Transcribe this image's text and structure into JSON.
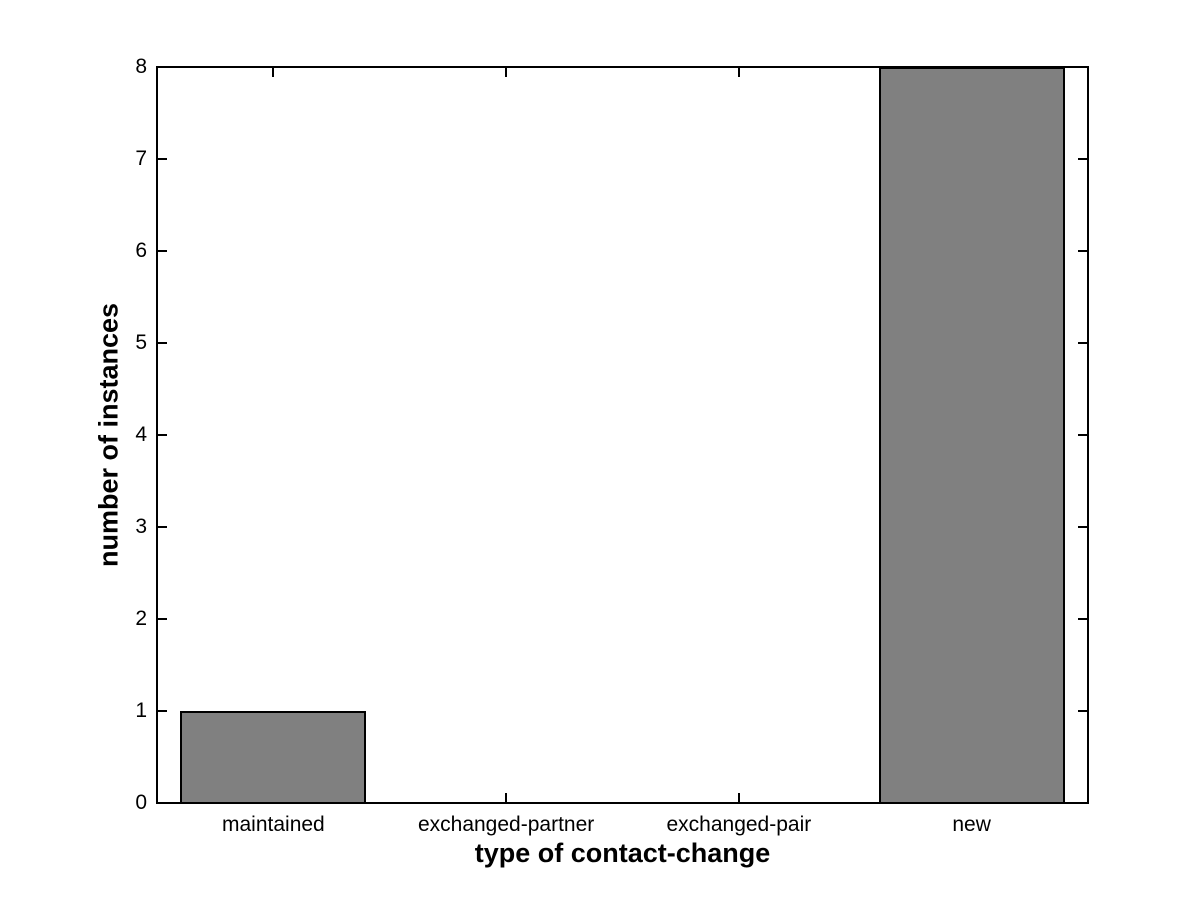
{
  "figure": {
    "background_color": "#ffffff",
    "text_color": "#000000"
  },
  "chart_data": {
    "type": "bar",
    "title": "",
    "xlabel": "type of contact-change",
    "ylabel": "number of instances",
    "categories": [
      "maintained",
      "exchanged-partner",
      "exchanged-pair",
      "new"
    ],
    "values": [
      1,
      0,
      0,
      8
    ],
    "ylim": [
      0,
      8
    ],
    "yticks": [
      0,
      1,
      2,
      3,
      4,
      5,
      6,
      7,
      8
    ],
    "bar_width_fraction": 0.8,
    "bar_fill_color": "#808080",
    "bar_edge_color": "#000000",
    "axis_color": "#000000",
    "grid": false,
    "legend": null,
    "tick_direction": "in",
    "box": true
  }
}
